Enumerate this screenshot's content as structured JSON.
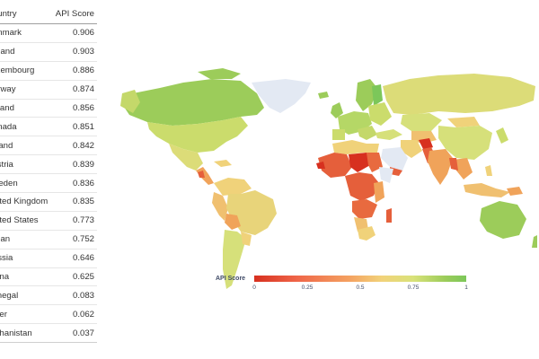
{
  "table": {
    "header": {
      "country": "Country",
      "score": "API Score"
    },
    "rows": [
      {
        "country": "Denmark",
        "score": "0.906"
      },
      {
        "country": "Finland",
        "score": "0.903"
      },
      {
        "country": "Luxembourg",
        "score": "0.886"
      },
      {
        "country": "Norway",
        "score": "0.874"
      },
      {
        "country": "Iceland",
        "score": "0.856"
      },
      {
        "country": "Canada",
        "score": "0.851"
      },
      {
        "country": "Ireland",
        "score": "0.842"
      },
      {
        "country": "Austria",
        "score": "0.839"
      },
      {
        "country": "Sweden",
        "score": "0.836"
      },
      {
        "country": "United Kingdom",
        "score": "0.835"
      },
      {
        "country": "United States",
        "score": "0.773"
      },
      {
        "country": "Japan",
        "score": "0.752"
      },
      {
        "country": "Russia",
        "score": "0.646"
      },
      {
        "country": "China",
        "score": "0.625"
      },
      {
        "country": "Senegal",
        "score": "0.083"
      },
      {
        "country": "Niger",
        "score": "0.062"
      },
      {
        "country": "Afghanistan",
        "score": "0.037"
      }
    ]
  },
  "legend": {
    "title": "API Score",
    "ticks": [
      "0",
      "0.25",
      "0.5",
      "0.75",
      "1"
    ],
    "colorscale": [
      "#d7301f",
      "#ef6548",
      "#f4a261",
      "#f2d27a",
      "#d9e27a",
      "#9ccc5a",
      "#7cc75a"
    ]
  },
  "colors": {
    "no_data": "#e3e9f3",
    "high": "#9ccc5a",
    "upper_mid": "#d6e07a",
    "mid": "#f0d27a",
    "low_mid": "#f0a35a",
    "low": "#e55f3b",
    "lowest": "#d7301f"
  }
}
